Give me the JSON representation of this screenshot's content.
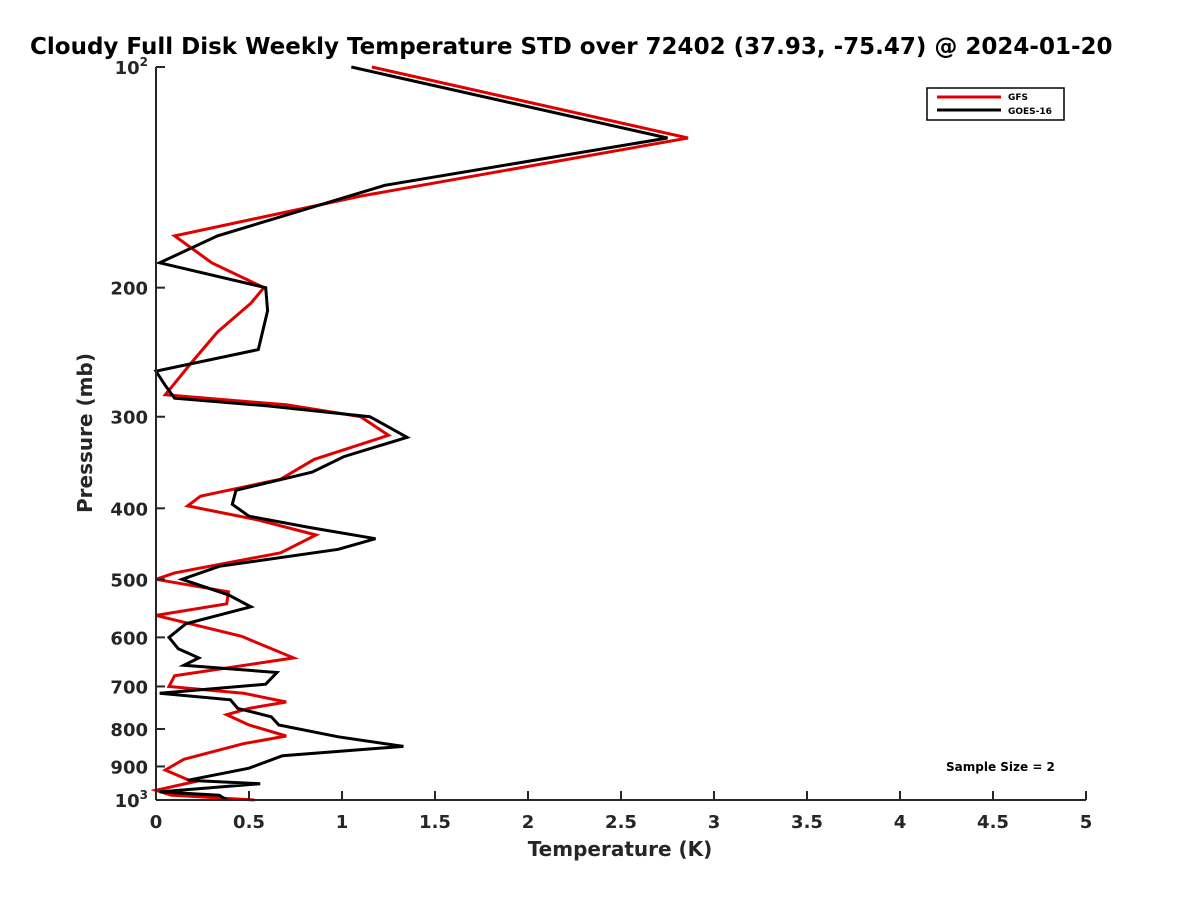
{
  "chart_data": {
    "type": "line",
    "title": "Cloudy Full Disk Weekly Temperature STD over 72402 (37.93, -75.47) @ 2024-01-20",
    "xlabel": "Temperature (K)",
    "ylabel": "Pressure (mb)",
    "xlim": [
      0,
      5
    ],
    "ylim": [
      100,
      1000
    ],
    "y_scale": "log",
    "y_reversed": true,
    "grid": false,
    "legend_position": "top-right",
    "x_ticks": [
      "0",
      "0.5",
      "1",
      "1.5",
      "2",
      "2.5",
      "3",
      "3.5",
      "4",
      "4.5",
      "5"
    ],
    "y_ticks": [
      {
        "value": 100,
        "label": "10",
        "sup": "2"
      },
      {
        "value": 200,
        "label": "200",
        "sup": ""
      },
      {
        "value": 300,
        "label": "300",
        "sup": ""
      },
      {
        "value": 400,
        "label": "400",
        "sup": ""
      },
      {
        "value": 500,
        "label": "500",
        "sup": ""
      },
      {
        "value": 600,
        "label": "600",
        "sup": ""
      },
      {
        "value": 700,
        "label": "700",
        "sup": ""
      },
      {
        "value": 800,
        "label": "800",
        "sup": ""
      },
      {
        "value": 900,
        "label": "900",
        "sup": ""
      },
      {
        "value": 1000,
        "label": "10",
        "sup": "3"
      }
    ],
    "annotation": "Sample Size = 2",
    "series": [
      {
        "name": "GFS",
        "color": "#e00000",
        "points": [
          [
            1.16,
            100
          ],
          [
            2.86,
            125
          ],
          [
            1.1,
            150
          ],
          [
            0.1,
            170
          ],
          [
            0.3,
            185
          ],
          [
            0.58,
            200
          ],
          [
            0.51,
            210
          ],
          [
            0.33,
            230
          ],
          [
            0.18,
            255
          ],
          [
            0.05,
            280
          ],
          [
            0.7,
            289
          ],
          [
            1.1,
            300
          ],
          [
            1.25,
            318
          ],
          [
            0.85,
            343
          ],
          [
            0.67,
            365
          ],
          [
            0.24,
            385
          ],
          [
            0.17,
            397
          ],
          [
            0.55,
            415
          ],
          [
            0.86,
            435
          ],
          [
            0.67,
            460
          ],
          [
            0.1,
            490
          ],
          [
            0.0,
            500
          ],
          [
            0.39,
            520
          ],
          [
            0.38,
            540
          ],
          [
            0.0,
            560
          ],
          [
            0.46,
            598
          ],
          [
            0.74,
            640
          ],
          [
            0.1,
            677
          ],
          [
            0.07,
            700
          ],
          [
            0.47,
            715
          ],
          [
            0.7,
            735
          ],
          [
            0.5,
            750
          ],
          [
            0.38,
            765
          ],
          [
            0.5,
            790
          ],
          [
            0.7,
            818
          ],
          [
            0.47,
            838
          ],
          [
            0.15,
            880
          ],
          [
            0.05,
            910
          ],
          [
            0.2,
            945
          ],
          [
            0.0,
            970
          ],
          [
            0.08,
            985
          ],
          [
            0.53,
            1000
          ]
        ]
      },
      {
        "name": "GOES-16",
        "color": "#000000",
        "points": [
          [
            1.05,
            100
          ],
          [
            2.75,
            125
          ],
          [
            1.23,
            145
          ],
          [
            0.33,
            170
          ],
          [
            0.02,
            185
          ],
          [
            0.59,
            200
          ],
          [
            0.6,
            215
          ],
          [
            0.55,
            243
          ],
          [
            0.0,
            260
          ],
          [
            0.05,
            272
          ],
          [
            0.1,
            283
          ],
          [
            0.6,
            290
          ],
          [
            1.15,
            300
          ],
          [
            1.35,
            320
          ],
          [
            1.01,
            340
          ],
          [
            0.84,
            357
          ],
          [
            0.43,
            378
          ],
          [
            0.41,
            395
          ],
          [
            0.5,
            410
          ],
          [
            0.83,
            425
          ],
          [
            1.18,
            440
          ],
          [
            0.98,
            455
          ],
          [
            0.34,
            480
          ],
          [
            0.14,
            500
          ],
          [
            0.39,
            525
          ],
          [
            0.51,
            545
          ],
          [
            0.16,
            575
          ],
          [
            0.07,
            600
          ],
          [
            0.12,
            622
          ],
          [
            0.23,
            640
          ],
          [
            0.15,
            655
          ],
          [
            0.65,
            670
          ],
          [
            0.59,
            695
          ],
          [
            0.02,
            715
          ],
          [
            0.4,
            730
          ],
          [
            0.44,
            750
          ],
          [
            0.62,
            770
          ],
          [
            0.66,
            790
          ],
          [
            0.98,
            820
          ],
          [
            1.33,
            845
          ],
          [
            0.68,
            870
          ],
          [
            0.5,
            905
          ],
          [
            0.17,
            940
          ],
          [
            0.56,
            950
          ],
          [
            0.02,
            975
          ],
          [
            0.34,
            985
          ],
          [
            0.38,
            1000
          ]
        ]
      }
    ]
  }
}
